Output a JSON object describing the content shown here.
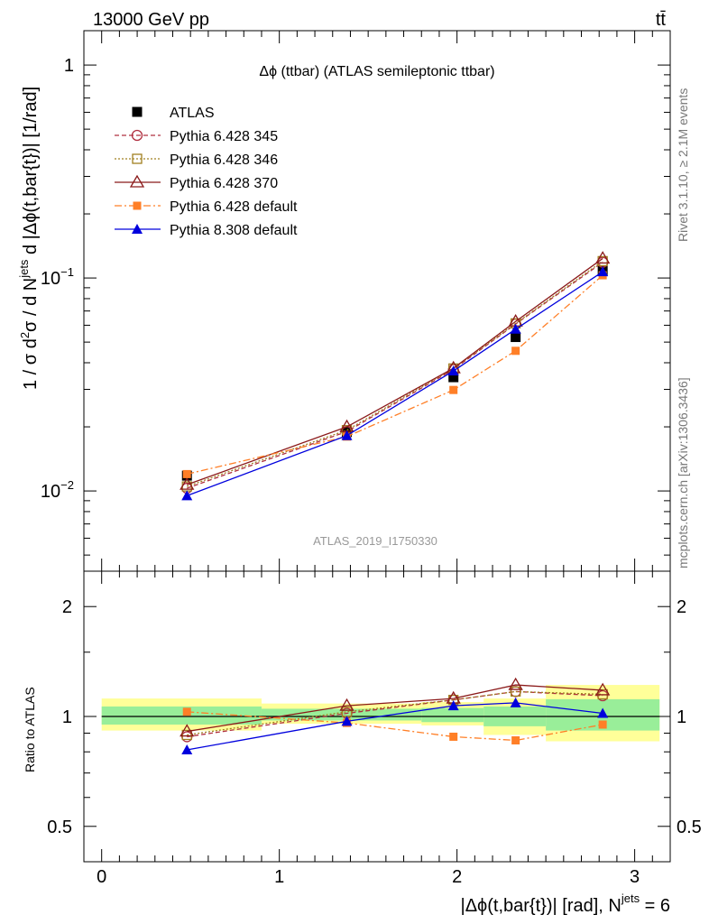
{
  "header": {
    "left": "13000 GeV pp",
    "right": "tt̄"
  },
  "side_labels": {
    "rivet": "Rivet 3.1.10, ≥ 2.1M events",
    "mcplots": "mcplots.cern.ch [arXiv:1306.3436]"
  },
  "analysis_tag": "ATLAS_2019_I1750330",
  "colors": {
    "atlas": "#000000",
    "p345": "#b03040",
    "p346": "#a08020",
    "p370": "#8b1a1a",
    "pdefault": "#ff7f27",
    "p8": "#0000dd",
    "band_inner": "#99ee99",
    "band_outer": "#ffff99"
  },
  "chart_data": [
    {
      "type": "line",
      "title": "Δϕ (ttbar) (ATLAS semileptonic ttbar)",
      "ylabel": "1 / σ d²σ / d N^jets d |Δϕ(t,bar{t})| [1/rad]",
      "ylog": true,
      "ylim": [
        0.0042,
        1.45
      ],
      "xlim": [
        -0.1,
        3.2
      ],
      "yticks": [
        {
          "v": 0.01,
          "base": "10",
          "exp": "−2"
        },
        {
          "v": 0.1,
          "base": "10",
          "exp": "−1"
        },
        {
          "v": 1,
          "base": "1",
          "exp": ""
        }
      ],
      "legend_position": "top-left",
      "x": [
        0.48,
        1.38,
        1.98,
        2.33,
        2.82
      ],
      "series": [
        {
          "name": "ATLAS",
          "key": "atlas",
          "values": [
            0.0118,
            0.0189,
            0.0342,
            0.0528,
            0.1082
          ]
        },
        {
          "name": "Pythia 6.428 345",
          "key": "p345",
          "values": [
            0.0103,
            0.019,
            0.0372,
            0.0608,
            0.1185
          ]
        },
        {
          "name": "Pythia 6.428 346",
          "key": "p346",
          "values": [
            0.0105,
            0.0193,
            0.0376,
            0.0612,
            0.12
          ]
        },
        {
          "name": "Pythia 6.428 370",
          "key": "p370",
          "values": [
            0.0107,
            0.02,
            0.0377,
            0.0625,
            0.1235
          ]
        },
        {
          "name": "Pythia 6.428 default",
          "key": "pdefault",
          "values": [
            0.012,
            0.018,
            0.0298,
            0.0455,
            0.103
          ]
        },
        {
          "name": "Pythia 8.308 default",
          "key": "p8",
          "values": [
            0.0095,
            0.0182,
            0.0366,
            0.0575,
            0.107
          ]
        }
      ]
    },
    {
      "type": "line",
      "ylabel": "Ratio to ATLAS",
      "xlabel": "|Δϕ(t,bar{t})| [rad], N^jets = 6",
      "ylog": true,
      "ylim": [
        0.4,
        2.5
      ],
      "xlim": [
        -0.1,
        3.2
      ],
      "yticks": [
        {
          "v": 0.5,
          "label": "0.5"
        },
        {
          "v": 1,
          "label": "1"
        },
        {
          "v": 2,
          "label": "2"
        }
      ],
      "xticks": [
        0,
        1,
        2,
        3
      ],
      "bin_edges": [
        0,
        0.9,
        1.8,
        2.15,
        2.5,
        3.14
      ],
      "band_outer": [
        [
          0.915,
          1.12
        ],
        [
          0.955,
          1.085
        ],
        [
          0.945,
          1.095
        ],
        [
          0.89,
          1.12
        ],
        [
          0.855,
          1.22
        ]
      ],
      "band_inner": [
        [
          0.95,
          1.065
        ],
        [
          0.975,
          1.05
        ],
        [
          0.965,
          1.055
        ],
        [
          0.94,
          1.065
        ],
        [
          0.915,
          1.115
        ]
      ],
      "series": [
        {
          "name": "Pythia 6.428 345",
          "key": "p345",
          "values": [
            0.88,
            1.02,
            1.11,
            1.17,
            1.14
          ]
        },
        {
          "name": "Pythia 6.428 346",
          "key": "p346",
          "values": [
            0.89,
            1.03,
            1.11,
            1.17,
            1.15
          ]
        },
        {
          "name": "Pythia 6.428 370",
          "key": "p370",
          "values": [
            0.91,
            1.07,
            1.12,
            1.22,
            1.18
          ]
        },
        {
          "name": "Pythia 6.428 default",
          "key": "pdefault",
          "values": [
            1.03,
            0.96,
            0.88,
            0.86,
            0.95
          ]
        },
        {
          "name": "Pythia 8.308 default",
          "key": "p8",
          "values": [
            0.81,
            0.97,
            1.07,
            1.09,
            1.02
          ]
        }
      ]
    }
  ]
}
